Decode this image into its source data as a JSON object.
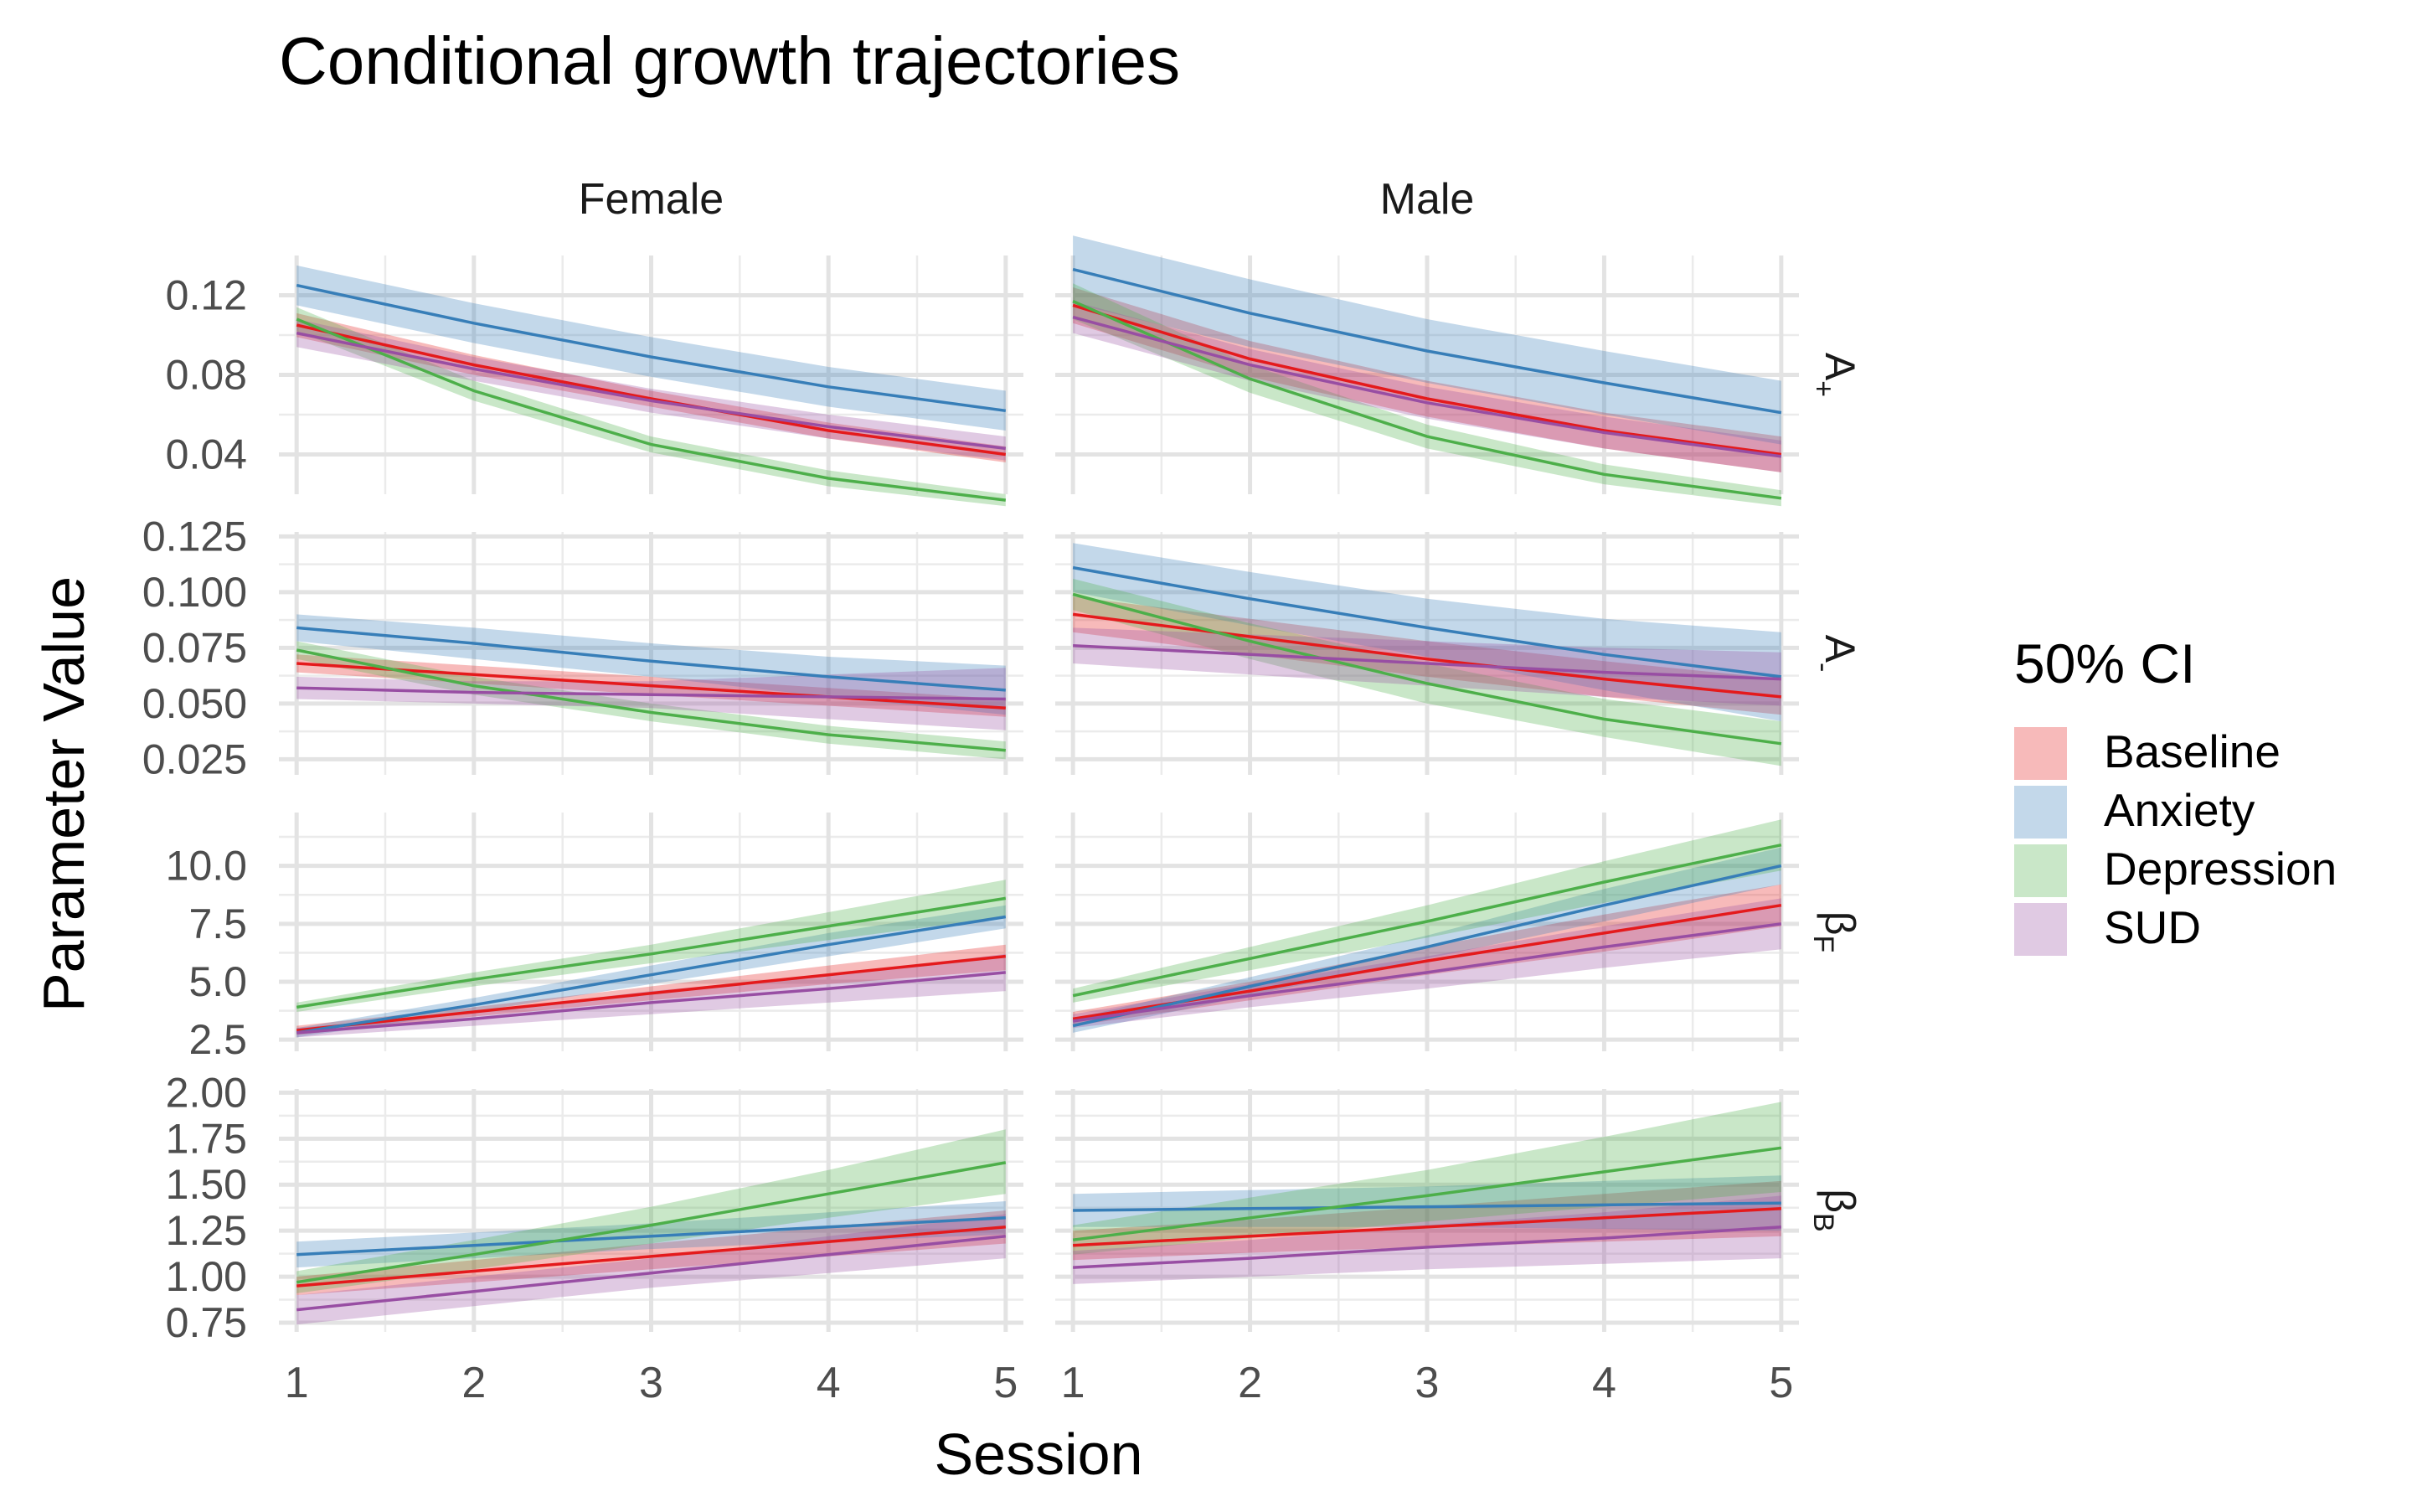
{
  "chart_data": {
    "type": "line",
    "title": "Conditional growth trajectories",
    "xlabel": "Session",
    "ylabel": "Parameter Value",
    "x": [
      1,
      2,
      3,
      4,
      5
    ],
    "xlim": [
      0.9,
      5.1
    ],
    "x_ticks": [
      "1",
      "2",
      "3",
      "4",
      "5"
    ],
    "grid": true,
    "legend": {
      "title": "50% CI",
      "position": "right",
      "entries": [
        "Baseline",
        "Anxiety",
        "Depression",
        "SUD"
      ]
    },
    "columns": [
      "Female",
      "Male"
    ],
    "colors": {
      "Baseline": "#e41a1c",
      "Anxiety": "#377eb8",
      "Depression": "#4daf4a",
      "SUD": "#984ea3"
    },
    "rows": [
      {
        "label_base": "A",
        "label_sub": "+",
        "ylim": [
          0.02,
          0.14
        ],
        "y_ticks": [
          0.04,
          0.08,
          0.12
        ],
        "y_tick_labels": [
          "0.04",
          "0.08",
          "0.12"
        ],
        "y_minor": [
          0.02,
          0.06,
          0.1,
          0.14
        ],
        "panels": {
          "Female": {
            "Baseline": {
              "mid": [
                0.105,
                0.085,
                0.068,
                0.052,
                0.04
              ],
              "lo": [
                0.099,
                0.08,
                0.064,
                0.048,
                0.036
              ],
              "hi": [
                0.111,
                0.09,
                0.072,
                0.056,
                0.044
              ]
            },
            "Anxiety": {
              "mid": [
                0.125,
                0.106,
                0.089,
                0.074,
                0.062
              ],
              "lo": [
                0.115,
                0.096,
                0.079,
                0.064,
                0.052
              ],
              "hi": [
                0.135,
                0.116,
                0.099,
                0.084,
                0.072
              ]
            },
            "Depression": {
              "mid": [
                0.108,
                0.072,
                0.045,
                0.028,
                0.017
              ],
              "lo": [
                0.102,
                0.067,
                0.041,
                0.024,
                0.014
              ],
              "hi": [
                0.114,
                0.077,
                0.049,
                0.032,
                0.02
              ]
            },
            "SUD": {
              "mid": [
                0.101,
                0.083,
                0.067,
                0.054,
                0.043
              ],
              "lo": [
                0.094,
                0.077,
                0.061,
                0.048,
                0.037
              ],
              "hi": [
                0.108,
                0.089,
                0.073,
                0.06,
                0.049
              ]
            }
          },
          "Male": {
            "Baseline": {
              "mid": [
                0.115,
                0.088,
                0.068,
                0.052,
                0.04
              ],
              "lo": [
                0.106,
                0.079,
                0.059,
                0.043,
                0.031
              ],
              "hi": [
                0.124,
                0.097,
                0.077,
                0.061,
                0.049
              ]
            },
            "Anxiety": {
              "mid": [
                0.133,
                0.111,
                0.092,
                0.076,
                0.061
              ],
              "lo": [
                0.116,
                0.094,
                0.076,
                0.06,
                0.045
              ],
              "hi": [
                0.15,
                0.128,
                0.108,
                0.092,
                0.077
              ]
            },
            "Depression": {
              "mid": [
                0.117,
                0.078,
                0.049,
                0.03,
                0.018
              ],
              "lo": [
                0.108,
                0.071,
                0.043,
                0.025,
                0.014
              ],
              "hi": [
                0.126,
                0.085,
                0.055,
                0.035,
                0.022
              ]
            },
            "SUD": {
              "mid": [
                0.109,
                0.085,
                0.066,
                0.051,
                0.039
              ],
              "lo": [
                0.101,
                0.077,
                0.058,
                0.043,
                0.031
              ],
              "hi": [
                0.117,
                0.093,
                0.074,
                0.059,
                0.047
              ]
            }
          }
        }
      },
      {
        "label_base": "A",
        "label_sub": "-",
        "ylim": [
          0.018,
          0.127
        ],
        "y_ticks": [
          0.025,
          0.05,
          0.075,
          0.1,
          0.125
        ],
        "y_tick_labels": [
          "0.025",
          "0.050",
          "0.075",
          "0.100",
          "0.125"
        ],
        "y_minor": [
          0.0375,
          0.0625,
          0.0875,
          0.1125
        ],
        "panels": {
          "Female": {
            "Baseline": {
              "mid": [
                0.068,
                0.063,
                0.058,
                0.053,
                0.048
              ],
              "lo": [
                0.064,
                0.059,
                0.054,
                0.049,
                0.044
              ],
              "hi": [
                0.072,
                0.067,
                0.062,
                0.057,
                0.052
              ]
            },
            "Anxiety": {
              "mid": [
                0.084,
                0.077,
                0.069,
                0.062,
                0.056
              ],
              "lo": [
                0.078,
                0.07,
                0.062,
                0.053,
                0.045
              ],
              "hi": [
                0.09,
                0.084,
                0.077,
                0.071,
                0.067
              ]
            },
            "Depression": {
              "mid": [
                0.074,
                0.058,
                0.046,
                0.036,
                0.029
              ],
              "lo": [
                0.07,
                0.054,
                0.042,
                0.032,
                0.025
              ],
              "hi": [
                0.078,
                0.062,
                0.05,
                0.04,
                0.033
              ]
            },
            "SUD": {
              "mid": [
                0.057,
                0.055,
                0.054,
                0.053,
                0.052
              ],
              "lo": [
                0.052,
                0.05,
                0.048,
                0.043,
                0.038
              ],
              "hi": [
                0.062,
                0.06,
                0.06,
                0.063,
                0.066
              ]
            }
          },
          "Male": {
            "Baseline": {
              "mid": [
                0.09,
                0.08,
                0.07,
                0.061,
                0.053
              ],
              "lo": [
                0.082,
                0.072,
                0.062,
                0.053,
                0.045
              ],
              "hi": [
                0.098,
                0.088,
                0.078,
                0.069,
                0.061
              ]
            },
            "Anxiety": {
              "mid": [
                0.111,
                0.097,
                0.084,
                0.072,
                0.062
              ],
              "lo": [
                0.1,
                0.085,
                0.071,
                0.056,
                0.042
              ],
              "hi": [
                0.122,
                0.109,
                0.097,
                0.088,
                0.082
              ]
            },
            "Depression": {
              "mid": [
                0.099,
                0.078,
                0.059,
                0.043,
                0.032
              ],
              "lo": [
                0.092,
                0.07,
                0.05,
                0.035,
                0.022
              ],
              "hi": [
                0.106,
                0.086,
                0.068,
                0.052,
                0.042
              ]
            },
            "SUD": {
              "mid": [
                0.076,
                0.072,
                0.068,
                0.064,
                0.061
              ],
              "lo": [
                0.068,
                0.063,
                0.058,
                0.053,
                0.049
              ],
              "hi": [
                0.084,
                0.081,
                0.078,
                0.075,
                0.073
              ]
            }
          }
        }
      },
      {
        "label_base": "β",
        "label_sub": "F",
        "ylim": [
          2.0,
          12.3
        ],
        "y_ticks": [
          2.5,
          5.0,
          7.5,
          10.0
        ],
        "y_tick_labels": [
          "2.5",
          "5.0",
          "7.5",
          "10.0"
        ],
        "y_minor": [
          3.75,
          6.25,
          8.75,
          11.25
        ],
        "panels": {
          "Female": {
            "Baseline": {
              "mid": [
                2.9,
                3.7,
                4.5,
                5.3,
                6.1
              ],
              "lo": [
                2.7,
                3.5,
                4.2,
                4.9,
                5.5
              ],
              "hi": [
                3.1,
                3.9,
                4.8,
                5.7,
                6.6
              ]
            },
            "Anxiety": {
              "mid": [
                2.8,
                4.0,
                5.3,
                6.6,
                7.8
              ],
              "lo": [
                2.6,
                3.7,
                4.9,
                6.1,
                7.3
              ],
              "hi": [
                3.0,
                4.3,
                5.7,
                7.1,
                8.3
              ]
            },
            "Depression": {
              "mid": [
                3.9,
                5.1,
                6.2,
                7.4,
                8.6
              ],
              "lo": [
                3.7,
                4.8,
                5.8,
                6.8,
                7.8
              ],
              "hi": [
                4.1,
                5.4,
                6.6,
                8.0,
                9.4
              ]
            },
            "SUD": {
              "mid": [
                2.8,
                3.4,
                4.1,
                4.7,
                5.4
              ],
              "lo": [
                2.6,
                3.1,
                3.6,
                4.1,
                4.6
              ],
              "hi": [
                3.0,
                3.7,
                4.6,
                5.3,
                6.2
              ]
            }
          },
          "Male": {
            "Baseline": {
              "mid": [
                3.4,
                4.6,
                5.9,
                7.1,
                8.3
              ],
              "lo": [
                3.1,
                4.2,
                5.3,
                6.3,
                7.4
              ],
              "hi": [
                3.7,
                5.0,
                6.5,
                7.9,
                9.2
              ]
            },
            "Anxiety": {
              "mid": [
                3.1,
                4.8,
                6.5,
                8.3,
                10.0
              ],
              "lo": [
                2.8,
                4.4,
                6.0,
                7.6,
                9.2
              ],
              "hi": [
                3.4,
                5.2,
                7.0,
                9.0,
                10.8
              ]
            },
            "Depression": {
              "mid": [
                4.4,
                6.0,
                7.6,
                9.3,
                10.9
              ],
              "lo": [
                4.1,
                5.5,
                6.9,
                8.4,
                9.8
              ],
              "hi": [
                4.7,
                6.5,
                8.3,
                10.2,
                12.0
              ]
            },
            "SUD": {
              "mid": [
                3.3,
                4.4,
                5.4,
                6.5,
                7.5
              ],
              "lo": [
                3.0,
                3.9,
                4.7,
                5.6,
                6.4
              ],
              "hi": [
                3.6,
                4.9,
                6.1,
                7.4,
                8.6
              ]
            }
          }
        }
      },
      {
        "label_base": "β",
        "label_sub": "B",
        "ylim": [
          0.7,
          2.02
        ],
        "y_ticks": [
          0.75,
          1.0,
          1.25,
          1.5,
          1.75,
          2.0
        ],
        "y_tick_labels": [
          "0.75",
          "1.00",
          "1.25",
          "1.50",
          "1.75",
          "2.00"
        ],
        "y_minor": [
          0.875,
          1.125,
          1.375,
          1.625,
          1.875
        ],
        "panels": {
          "Female": {
            "Baseline": {
              "mid": [
                0.95,
                1.03,
                1.11,
                1.19,
                1.27
              ],
              "lo": [
                0.9,
                0.97,
                1.04,
                1.11,
                1.18
              ],
              "hi": [
                1.0,
                1.09,
                1.18,
                1.27,
                1.36
              ]
            },
            "Anxiety": {
              "mid": [
                1.12,
                1.17,
                1.22,
                1.27,
                1.32
              ],
              "lo": [
                1.05,
                1.1,
                1.15,
                1.19,
                1.23
              ],
              "hi": [
                1.19,
                1.24,
                1.29,
                1.35,
                1.41
              ]
            },
            "Depression": {
              "mid": [
                0.97,
                1.12,
                1.28,
                1.45,
                1.62
              ],
              "lo": [
                0.91,
                1.04,
                1.18,
                1.32,
                1.45
              ],
              "hi": [
                1.03,
                1.2,
                1.38,
                1.58,
                1.8
              ]
            },
            "SUD": {
              "mid": [
                0.82,
                0.92,
                1.02,
                1.12,
                1.22
              ],
              "lo": [
                0.74,
                0.84,
                0.94,
                1.02,
                1.1
              ],
              "hi": [
                0.9,
                1.0,
                1.1,
                1.22,
                1.34
              ]
            }
          },
          "Male": {
            "Baseline": {
              "mid": [
                1.17,
                1.22,
                1.27,
                1.32,
                1.37
              ],
              "lo": [
                1.09,
                1.13,
                1.16,
                1.19,
                1.22
              ],
              "hi": [
                1.25,
                1.31,
                1.38,
                1.45,
                1.52
              ]
            },
            "Anxiety": {
              "mid": [
                1.36,
                1.37,
                1.38,
                1.39,
                1.4
              ],
              "lo": [
                1.27,
                1.27,
                1.27,
                1.26,
                1.25
              ],
              "hi": [
                1.45,
                1.47,
                1.49,
                1.52,
                1.55
              ]
            },
            "Depression": {
              "mid": [
                1.2,
                1.32,
                1.44,
                1.57,
                1.7
              ],
              "lo": [
                1.12,
                1.21,
                1.3,
                1.38,
                1.46
              ],
              "hi": [
                1.28,
                1.43,
                1.58,
                1.76,
                1.95
              ]
            },
            "SUD": {
              "mid": [
                1.05,
                1.1,
                1.16,
                1.21,
                1.27
              ],
              "lo": [
                0.96,
                1.0,
                1.04,
                1.07,
                1.1
              ],
              "hi": [
                1.14,
                1.2,
                1.28,
                1.35,
                1.44
              ]
            }
          }
        }
      }
    ]
  }
}
